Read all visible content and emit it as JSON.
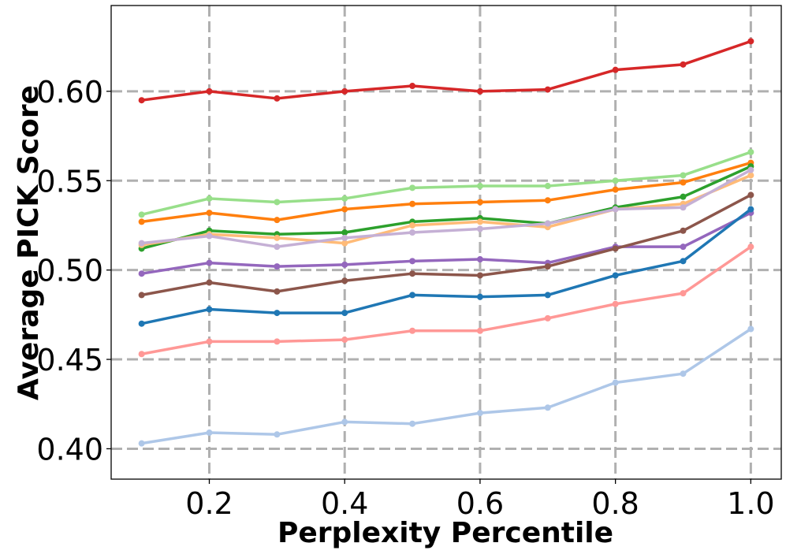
{
  "chart_data": {
    "type": "line",
    "title": "",
    "xlabel": "Perplexity Percentile",
    "ylabel": "Average PICK Score",
    "xlim": [
      0.055,
      1.045
    ],
    "ylim": [
      0.383,
      0.648
    ],
    "grid": true,
    "legend": "none",
    "x": [
      0.1,
      0.2,
      0.3,
      0.4,
      0.5,
      0.6,
      0.7,
      0.8,
      0.9,
      1.0
    ],
    "xticks": [
      0.2,
      0.4,
      0.6,
      0.8,
      1.0
    ],
    "xtick_labels": [
      "0.2",
      "0.4",
      "0.6",
      "0.8",
      "1.0"
    ],
    "yticks": [
      0.4,
      0.45,
      0.5,
      0.55,
      0.6
    ],
    "ytick_labels": [
      "0.40",
      "0.45",
      "0.50",
      "0.55",
      "0.60"
    ],
    "series": [
      {
        "name": "red",
        "color": "#d62728",
        "values": [
          0.595,
          0.6,
          0.596,
          0.6,
          0.603,
          0.6,
          0.601,
          0.612,
          0.615,
          0.628
        ]
      },
      {
        "name": "light-green",
        "color": "#98df8a",
        "values": [
          0.531,
          0.54,
          0.538,
          0.54,
          0.546,
          0.547,
          0.547,
          0.55,
          0.553,
          0.566
        ]
      },
      {
        "name": "orange",
        "color": "#ff7f0e",
        "values": [
          0.527,
          0.532,
          0.528,
          0.534,
          0.537,
          0.538,
          0.539,
          0.545,
          0.549,
          0.56
        ]
      },
      {
        "name": "green",
        "color": "#2ca02c",
        "values": [
          0.512,
          0.522,
          0.52,
          0.521,
          0.527,
          0.529,
          0.526,
          0.535,
          0.541,
          0.558
        ]
      },
      {
        "name": "light-orange",
        "color": "#ffbb78",
        "values": [
          0.514,
          0.52,
          0.518,
          0.515,
          0.525,
          0.527,
          0.524,
          0.534,
          0.537,
          0.553
        ]
      },
      {
        "name": "light-purple",
        "color": "#c5b0d5",
        "values": [
          0.515,
          0.519,
          0.513,
          0.518,
          0.521,
          0.523,
          0.526,
          0.534,
          0.535,
          0.556
        ]
      },
      {
        "name": "purple",
        "color": "#9467bd",
        "values": [
          0.498,
          0.504,
          0.502,
          0.503,
          0.505,
          0.506,
          0.504,
          0.513,
          0.513,
          0.532
        ]
      },
      {
        "name": "brown",
        "color": "#8c564b",
        "values": [
          0.486,
          0.493,
          0.488,
          0.494,
          0.498,
          0.497,
          0.502,
          0.512,
          0.522,
          0.542
        ]
      },
      {
        "name": "blue",
        "color": "#1f77b4",
        "values": [
          0.47,
          0.478,
          0.476,
          0.476,
          0.486,
          0.485,
          0.486,
          0.497,
          0.505,
          0.534
        ]
      },
      {
        "name": "pink",
        "color": "#ff9896",
        "values": [
          0.453,
          0.46,
          0.46,
          0.461,
          0.466,
          0.466,
          0.473,
          0.481,
          0.487,
          0.513
        ]
      },
      {
        "name": "light-blue",
        "color": "#aec7e8",
        "values": [
          0.403,
          0.409,
          0.408,
          0.415,
          0.414,
          0.42,
          0.423,
          0.437,
          0.442,
          0.467
        ]
      }
    ]
  }
}
